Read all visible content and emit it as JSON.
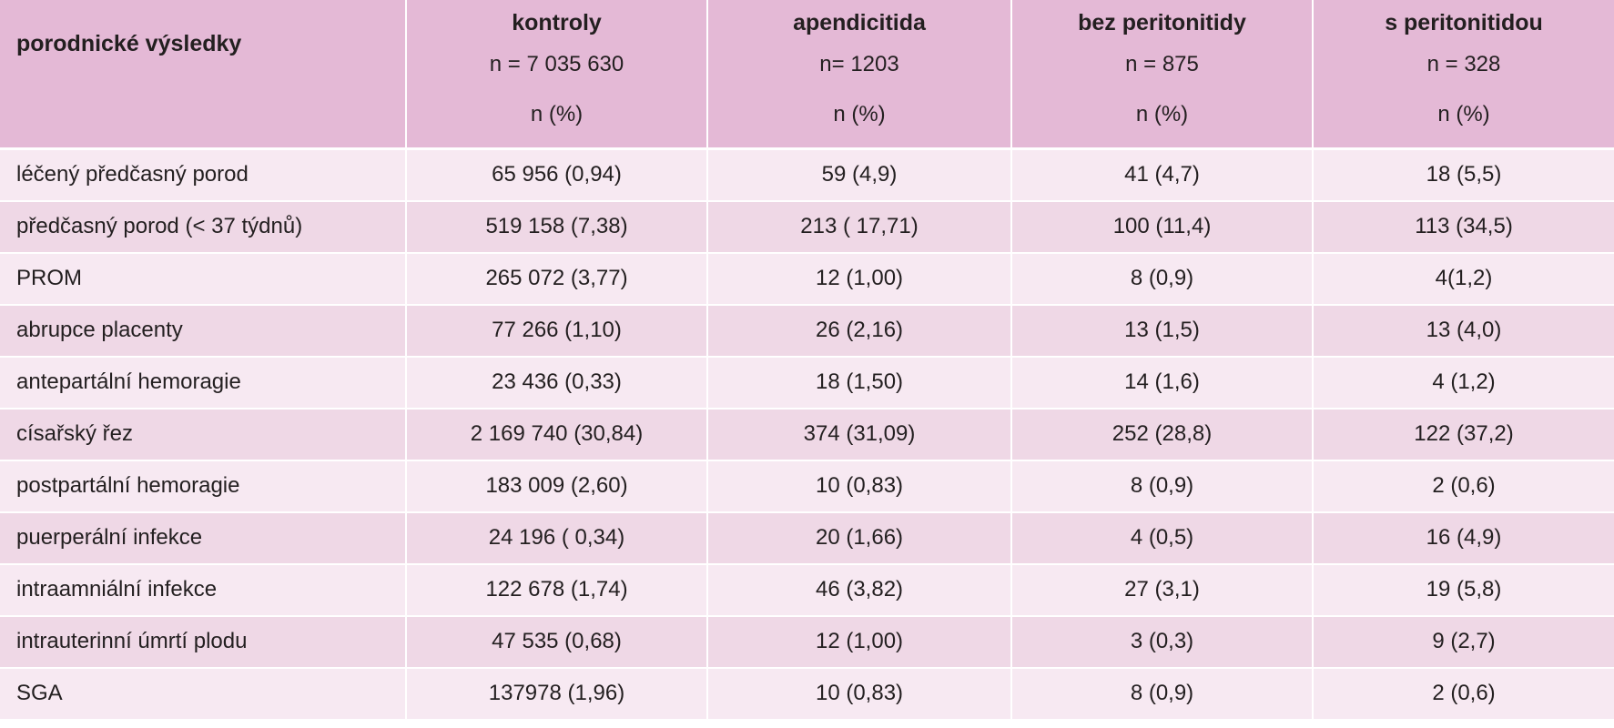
{
  "table": {
    "header": {
      "row_label": "porodnické výsledky",
      "columns": [
        {
          "title": "kontroly",
          "n": "n = 7 035 630",
          "unit": "n (%)"
        },
        {
          "title": "apendicitida",
          "n": "n= 1203",
          "unit": "n (%)"
        },
        {
          "title": "bez peritonitidy",
          "n": "n = 875",
          "unit": "n (%)"
        },
        {
          "title": "s peritonitidou",
          "n": "n = 328",
          "unit": "n (%)"
        }
      ]
    },
    "rows": [
      {
        "label": "léčený předčasný porod",
        "values": [
          "65 956 (0,94)",
          "59 (4,9)",
          "41 (4,7)",
          "18 (5,5)"
        ]
      },
      {
        "label": "předčasný porod (< 37 týdnů)",
        "values": [
          "519 158 (7,38)",
          "213 ( 17,71)",
          "100 (11,4)",
          "113 (34,5)"
        ]
      },
      {
        "label": "PROM",
        "values": [
          "265 072 (3,77)",
          "12 (1,00)",
          "8 (0,9)",
          "4(1,2)"
        ]
      },
      {
        "label": "abrupce placenty",
        "values": [
          "77 266 (1,10)",
          "26 (2,16)",
          "13 (1,5)",
          "13 (4,0)"
        ]
      },
      {
        "label": "antepartální hemoragie",
        "values": [
          "23 436 (0,33)",
          "18 (1,50)",
          "14 (1,6)",
          "4 (1,2)"
        ]
      },
      {
        "label": "císařský řez",
        "values": [
          "2 169 740 (30,84)",
          "374 (31,09)",
          "252 (28,8)",
          "122 (37,2)"
        ]
      },
      {
        "label": "postpartální hemoragie",
        "values": [
          "183 009 (2,60)",
          "10 (0,83)",
          "8 (0,9)",
          "2 (0,6)"
        ]
      },
      {
        "label": "puerperální infekce",
        "values": [
          "24 196 ( 0,34)",
          "20 (1,66)",
          "4 (0,5)",
          "16 (4,9)"
        ]
      },
      {
        "label": "intraamniální infekce",
        "values": [
          "122 678 (1,74)",
          "46 (3,82)",
          "27 (3,1)",
          "19 (5,8)"
        ]
      },
      {
        "label": "intrauterinní úmrtí plodu",
        "values": [
          "47 535 (0,68)",
          "12 (1,00)",
          "3 (0,3)",
          "9 (2,7)"
        ]
      },
      {
        "label": "SGA",
        "values": [
          "137978 (1,96)",
          "10 (0,83)",
          "8 (0,9)",
          "2 (0,6)"
        ]
      }
    ],
    "colors": {
      "header_bg": "#e4b9d6",
      "row_light": "#f7e9f2",
      "row_dark": "#efd8e6",
      "text": "#231f20"
    }
  }
}
